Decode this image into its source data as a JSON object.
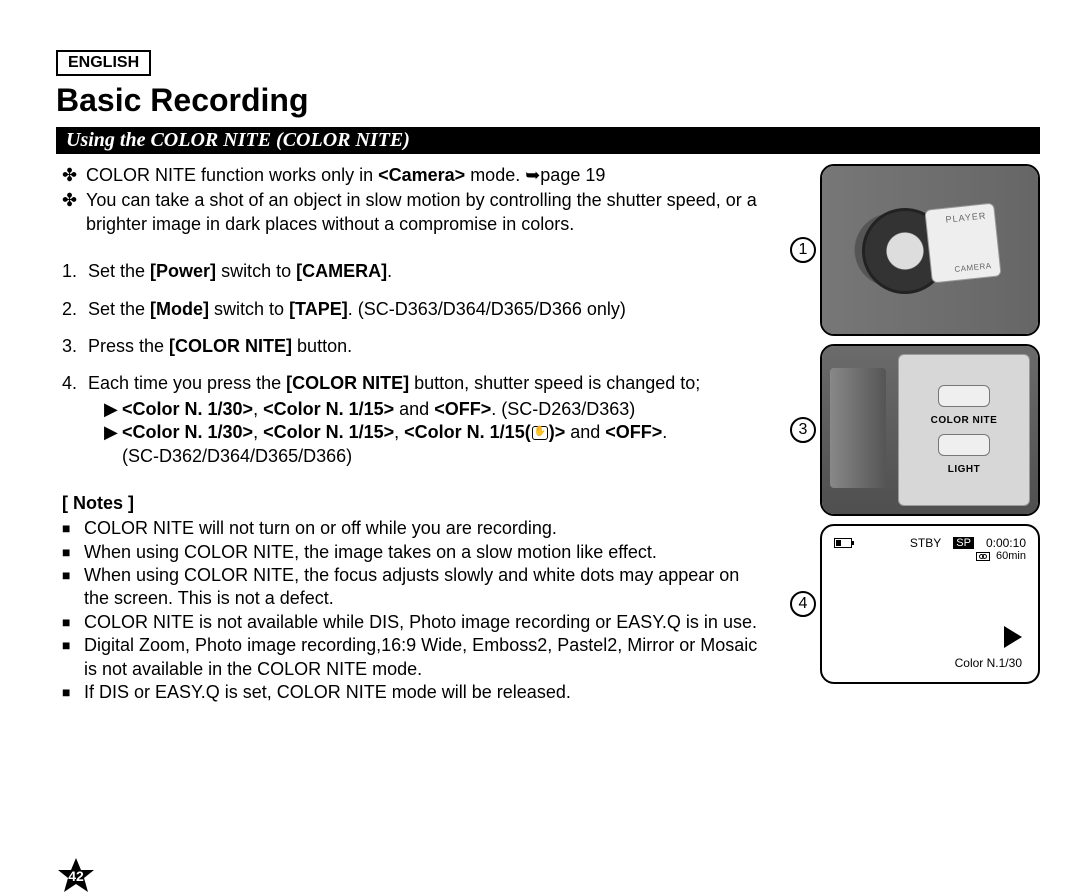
{
  "lang": "ENGLISH",
  "title": "Basic Recording",
  "section": "Using the COLOR NITE (COLOR NITE)",
  "intro": [
    {
      "pre": "COLOR NITE function works only in ",
      "b1": "<Camera>",
      "post": " mode. ➥page 19"
    },
    {
      "pre": "You can take a shot of an object in slow motion by controlling the shutter speed, or a brighter image in dark places without a compromise in colors."
    }
  ],
  "steps": [
    {
      "n": "1.",
      "parts": [
        "Set the ",
        "[Power]",
        " switch to ",
        "[CAMERA]",
        "."
      ]
    },
    {
      "n": "2.",
      "parts": [
        "Set the ",
        "[Mode]",
        " switch to ",
        "[TAPE]",
        ". (SC-D363/D364/D365/D366 only)"
      ]
    },
    {
      "n": "3.",
      "parts": [
        "Press the ",
        "[COLOR NITE]",
        " button."
      ]
    },
    {
      "n": "4.",
      "parts": [
        "Each time you press the ",
        "[COLOR NITE]",
        " button, shutter speed is changed to;"
      ],
      "subs": [
        {
          "b": [
            "<Color N. 1/30>",
            ", ",
            "<Color N. 1/15>",
            " and ",
            "<OFF>",
            ". (SC-D263/D363)"
          ]
        },
        {
          "b": [
            "<Color N. 1/30>",
            ", ",
            "<Color N. 1/15>",
            ", ",
            "<Color N. 1/15(",
            "HAND",
            ")>",
            " and ",
            "<OFF>",
            "."
          ],
          "tail": "(SC-D362/D364/D365/D366)"
        }
      ]
    }
  ],
  "notes_h": "[ Notes ]",
  "notes": [
    "COLOR NITE will not turn on or off while you are recording.",
    "When using COLOR NITE, the image takes on a slow motion like effect.",
    "When using COLOR NITE, the focus adjusts slowly and white dots may appear on the screen. This is not a defect.",
    "COLOR NITE is not available while DIS, Photo image recording or EASY.Q is in use.",
    "Digital Zoom, Photo image recording,16:9 Wide, Emboss2, Pastel2, Mirror or Mosaic is not available in the COLOR NITE mode.",
    "If DIS or EASY.Q is set, COLOR NITE mode will be released."
  ],
  "figs": {
    "n1": "1",
    "n3": "3",
    "n4": "4",
    "panel": {
      "l1": "COLOR NITE",
      "l2": "LIGHT"
    },
    "osd": {
      "stby": "STBY",
      "sp": "SP",
      "time": "0:00:10",
      "rem": "60min",
      "cn": "Color N.1/30"
    }
  },
  "page": "42"
}
